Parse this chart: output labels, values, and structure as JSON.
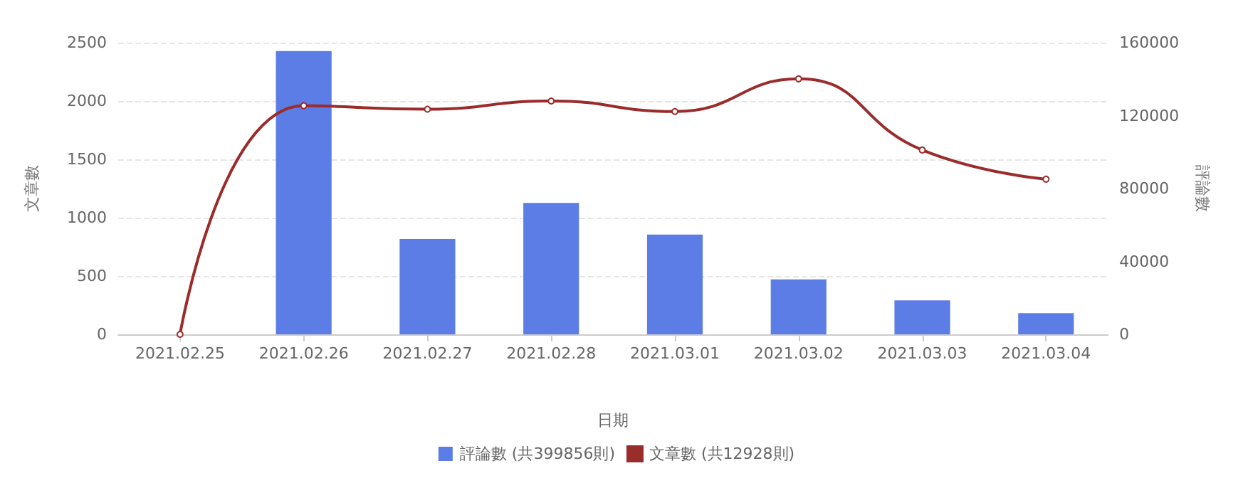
{
  "chart_data": {
    "type": "bar",
    "xlabel": "日期",
    "ylabel": "文章數",
    "y2label": "評論數",
    "categories": [
      "2021.02.25",
      "2021.02.26",
      "2021.02.27",
      "2021.02.28",
      "2021.03.01",
      "2021.03.02",
      "2021.03.03",
      "2021.03.04"
    ],
    "series": [
      {
        "name": "評論數 (共399856則)",
        "axis": "y2",
        "color": "#5b7de5",
        "values": [
          0,
          155400,
          52300,
          72100,
          54700,
          30100,
          18600,
          11600
        ]
      },
      {
        "name": "文章數 (共12928則)",
        "type": "line",
        "color": "#9b2c2c",
        "values": [
          0,
          1960,
          1930,
          2000,
          1910,
          2190,
          1580,
          1330
        ]
      }
    ],
    "ylim": [
      0,
      2500
    ],
    "yticks": [
      0,
      500,
      1000,
      1500,
      2000,
      2500
    ],
    "y2lim": [
      0,
      160000
    ],
    "y2ticks": [
      0,
      40000,
      80000,
      120000,
      160000
    ],
    "grid": "y",
    "legend": "bottom",
    "marker": "circle",
    "line_style": "solid"
  }
}
